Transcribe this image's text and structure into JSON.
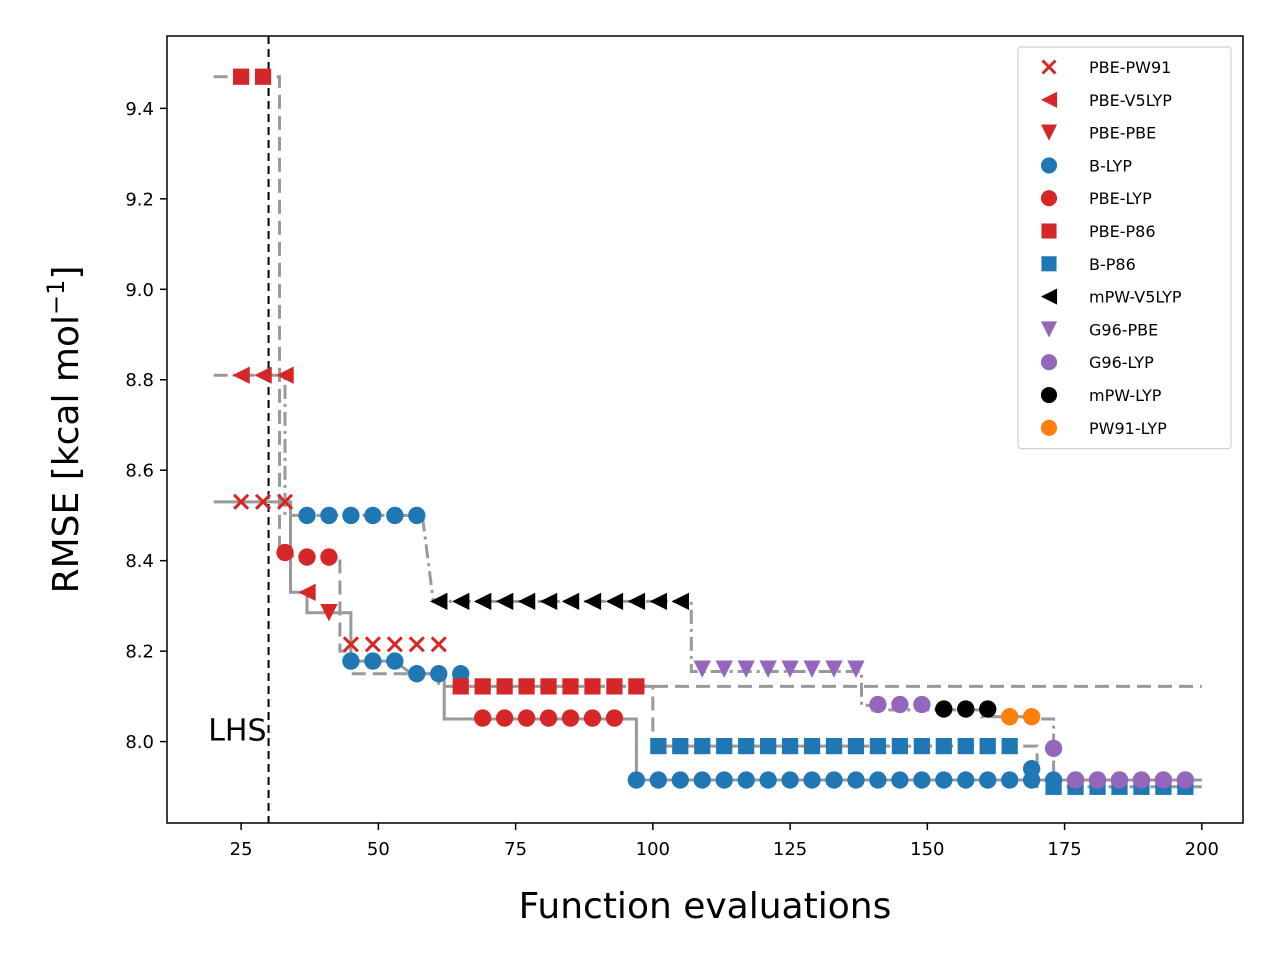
{
  "chart_data": {
    "type": "scatter",
    "xlabel": "Function evaluations",
    "ylabel": "RMSE [kcal mol",
    "ylabel_sup": "−1",
    "ylabel_end": "]",
    "xlim": [
      11.5,
      207.5
    ],
    "ylim": [
      7.82,
      9.56
    ],
    "xticks": [
      25,
      50,
      75,
      100,
      125,
      150,
      175,
      200
    ],
    "yticks": [
      8.0,
      8.2,
      8.4,
      8.6,
      8.8,
      9.0,
      9.2,
      9.4
    ],
    "ytick_labels": [
      "8.0",
      "8.2",
      "8.4",
      "8.6",
      "8.8",
      "9.0",
      "9.2",
      "9.4"
    ],
    "grid": false,
    "legend_position": "top-right",
    "annotation": {
      "text": "LHS",
      "x": 30,
      "style": "vertical dashed line"
    },
    "series": [
      {
        "name": "PBE-PW91",
        "marker": "x",
        "color": "#d62728",
        "x": [
          25,
          29,
          33,
          45,
          49,
          53,
          57,
          61
        ],
        "y": [
          8.53,
          8.53,
          8.53,
          8.215,
          8.215,
          8.215,
          8.215,
          8.215
        ]
      },
      {
        "name": "PBE-V5LYP",
        "marker": "triangle-left",
        "color": "#d62728",
        "x": [
          25,
          29,
          33,
          37
        ],
        "y": [
          8.81,
          8.81,
          8.81,
          8.33
        ]
      },
      {
        "name": "PBE-PBE",
        "marker": "triangle-down",
        "color": "#d62728",
        "x": [
          41
        ],
        "y": [
          8.285
        ]
      },
      {
        "name": "B-LYP",
        "marker": "circle",
        "color": "#1f77b4",
        "x": [
          37,
          41,
          45,
          49,
          53,
          57,
          45,
          49,
          53,
          57,
          61,
          65,
          97,
          101,
          105,
          109,
          113,
          117,
          121,
          125,
          129,
          133,
          137,
          141,
          145,
          149,
          153,
          157,
          161,
          165,
          169,
          169,
          173,
          177,
          181,
          185,
          189,
          193,
          197
        ],
        "y": [
          8.5,
          8.5,
          8.5,
          8.5,
          8.5,
          8.5,
          8.178,
          8.178,
          8.178,
          8.15,
          8.15,
          8.15,
          7.915,
          7.915,
          7.915,
          7.915,
          7.915,
          7.915,
          7.915,
          7.915,
          7.915,
          7.915,
          7.915,
          7.915,
          7.915,
          7.915,
          7.915,
          7.915,
          7.915,
          7.915,
          7.94,
          7.915,
          7.915,
          7.915,
          7.915,
          7.915,
          7.915,
          7.915,
          7.915
        ]
      },
      {
        "name": "PBE-LYP",
        "marker": "circle",
        "color": "#d62728",
        "x": [
          33,
          37,
          41,
          69,
          73,
          77,
          81,
          85,
          89,
          93
        ],
        "y": [
          8.418,
          8.408,
          8.408,
          8.052,
          8.052,
          8.052,
          8.052,
          8.052,
          8.052,
          8.052
        ]
      },
      {
        "name": "PBE-P86",
        "marker": "square",
        "color": "#d62728",
        "x": [
          25,
          29,
          65,
          69,
          73,
          77,
          81,
          85,
          89,
          93,
          97
        ],
        "y": [
          9.47,
          9.47,
          8.122,
          8.122,
          8.122,
          8.122,
          8.122,
          8.122,
          8.122,
          8.122,
          8.122
        ]
      },
      {
        "name": "B-P86",
        "marker": "square",
        "color": "#1f77b4",
        "x": [
          101,
          105,
          109,
          113,
          117,
          121,
          125,
          129,
          133,
          137,
          141,
          145,
          149,
          153,
          157,
          161,
          165,
          173,
          177,
          181,
          185,
          189,
          193,
          197
        ],
        "y": [
          7.99,
          7.99,
          7.99,
          7.99,
          7.99,
          7.99,
          7.99,
          7.99,
          7.99,
          7.99,
          7.99,
          7.99,
          7.99,
          7.99,
          7.99,
          7.99,
          7.99,
          7.9,
          7.9,
          7.9,
          7.9,
          7.9,
          7.9,
          7.9
        ]
      },
      {
        "name": "mPW-V5LYP",
        "marker": "triangle-left",
        "color": "#000000",
        "x": [
          61,
          65,
          69,
          73,
          77,
          81,
          85,
          89,
          93,
          97,
          101,
          105
        ],
        "y": [
          8.31,
          8.31,
          8.31,
          8.31,
          8.31,
          8.31,
          8.31,
          8.31,
          8.31,
          8.31,
          8.31,
          8.31
        ]
      },
      {
        "name": "G96-PBE",
        "marker": "triangle-down",
        "color": "#9467bd",
        "x": [
          109,
          113,
          117,
          121,
          125,
          129,
          133,
          137
        ],
        "y": [
          8.16,
          8.16,
          8.16,
          8.16,
          8.16,
          8.16,
          8.16,
          8.16
        ]
      },
      {
        "name": "G96-LYP",
        "marker": "circle",
        "color": "#9467bd",
        "x": [
          141,
          145,
          149,
          173,
          177,
          181,
          185,
          189,
          193,
          197
        ],
        "y": [
          8.082,
          8.082,
          8.082,
          7.985,
          7.915,
          7.915,
          7.915,
          7.915,
          7.915,
          7.915
        ]
      },
      {
        "name": "mPW-LYP",
        "marker": "circle",
        "color": "#000000",
        "x": [
          153,
          157,
          161
        ],
        "y": [
          8.072,
          8.072,
          8.072
        ]
      },
      {
        "name": "PW91-LYP",
        "marker": "circle",
        "color": "#ff7f0e",
        "x": [
          165,
          169
        ],
        "y": [
          8.055,
          8.055
        ]
      }
    ],
    "trace_lines": [
      {
        "style": "solid",
        "color": "#999999",
        "x": [
          20,
          34,
          34,
          37,
          37,
          41,
          41,
          45,
          45,
          53,
          56,
          57,
          62,
          62,
          65,
          65,
          97,
          97,
          200
        ],
        "y": [
          8.53,
          8.53,
          8.33,
          8.33,
          8.285,
          8.285,
          8.285,
          8.285,
          8.178,
          8.178,
          8.15,
          8.15,
          8.15,
          8.05,
          8.05,
          8.05,
          8.05,
          7.915,
          7.915
        ]
      },
      {
        "style": "dashed",
        "color": "#999999",
        "x": [
          20,
          32,
          32,
          34,
          34,
          43,
          43,
          45,
          45,
          61,
          61,
          200
        ],
        "y": [
          9.47,
          9.47,
          8.42,
          8.42,
          8.41,
          8.41,
          8.2,
          8.2,
          8.15,
          8.15,
          8.122,
          8.122
        ]
      },
      {
        "style": "dashdot",
        "color": "#999999",
        "x": [
          20,
          33,
          33,
          58,
          58,
          60,
          60,
          107,
          107,
          138,
          138,
          140,
          140,
          160,
          160,
          170,
          170,
          173,
          173,
          177,
          177,
          200
        ],
        "y": [
          8.81,
          8.81,
          8.5,
          8.5,
          8.5,
          8.31,
          8.31,
          8.31,
          8.155,
          8.155,
          8.08,
          8.08,
          8.07,
          8.07,
          8.055,
          8.055,
          8.05,
          8.05,
          7.915,
          7.915,
          7.915,
          7.915
        ]
      },
      {
        "style": "dashed",
        "color": "#999999",
        "x": [
          98,
          100,
          100,
          167,
          167,
          170,
          170,
          200
        ],
        "y": [
          8.122,
          8.122,
          7.99,
          7.99,
          7.99,
          7.99,
          7.9,
          7.9
        ]
      }
    ]
  }
}
